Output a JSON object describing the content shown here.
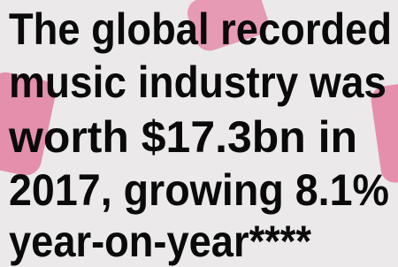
{
  "text": {
    "lines": [
      "The global recorded",
      "music industry was",
      "worth $17.3bn in",
      "2017, growing 8.1%",
      "year-on-year****"
    ]
  }
}
